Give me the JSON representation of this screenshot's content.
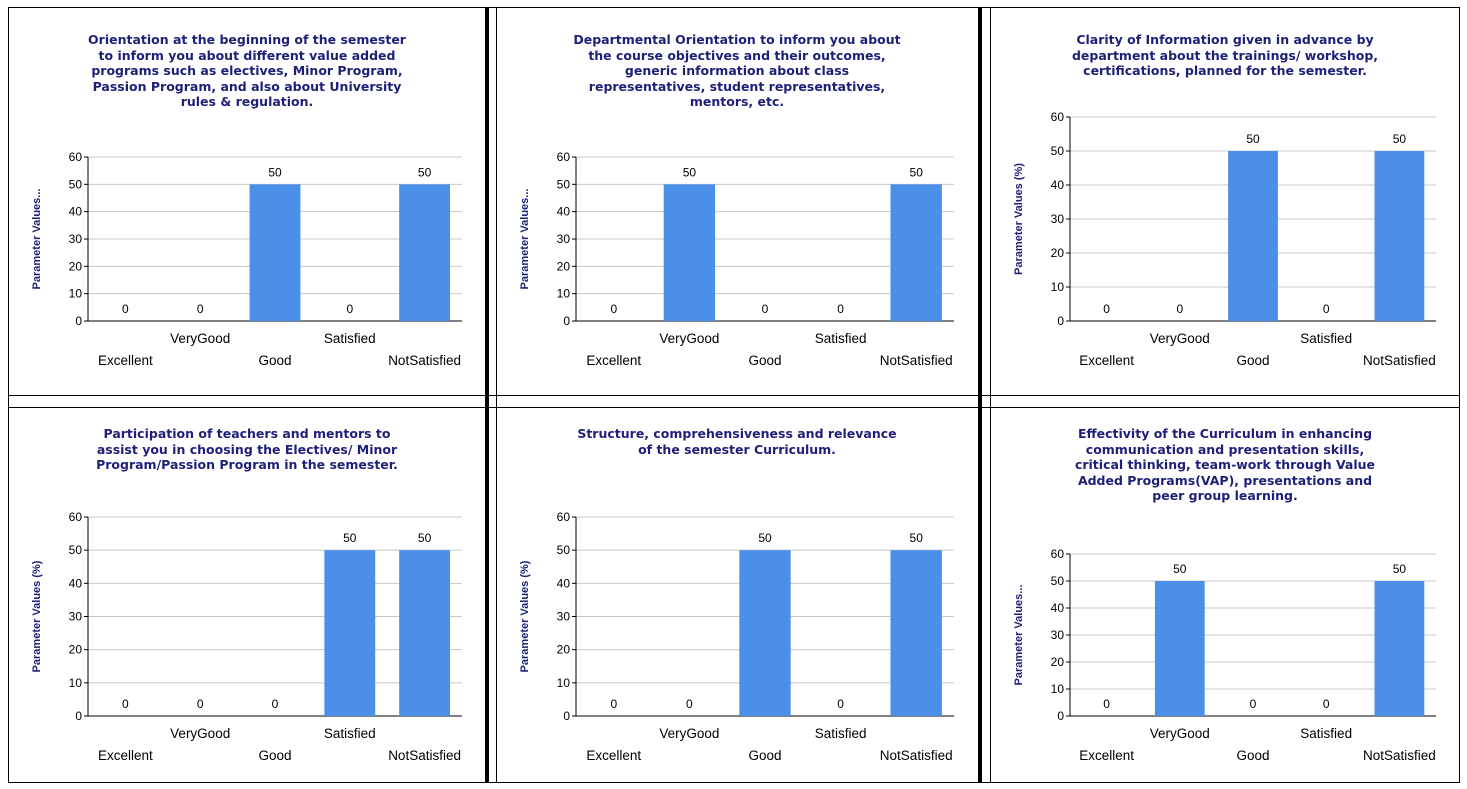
{
  "chart_data": [
    {
      "type": "bar",
      "title_lines": [
        "Orientation at the beginning of the semester",
        "to inform you about different value added",
        "programs such as electives, Minor Program,",
        "Passion Program, and also about University",
        "rules & regulation."
      ],
      "ylabel": "Parameter  Values...",
      "categories": [
        "Excellent",
        "VeryGood",
        "Good",
        "Satisfied",
        "NotSatisfied"
      ],
      "values": [
        0,
        0,
        50,
        0,
        50
      ],
      "data_labels": [
        "0",
        "0",
        "50",
        "0",
        "50"
      ],
      "yticks": [
        "0",
        "10",
        "20",
        "30",
        "40",
        "50",
        "60"
      ],
      "ylim": [
        0,
        60
      ]
    },
    {
      "type": "bar",
      "title_lines": [
        "Departmental Orientation to inform you about",
        "the course objectives and their outcomes,",
        "generic information about class",
        "representatives, student representatives,",
        "mentors, etc."
      ],
      "ylabel": "Parameter  Values...",
      "categories": [
        "Excellent",
        "VeryGood",
        "Good",
        "Satisfied",
        "NotSatisfied"
      ],
      "values": [
        0,
        50,
        0,
        0,
        50
      ],
      "data_labels": [
        "0",
        "50",
        "0",
        "0",
        "50"
      ],
      "yticks": [
        "0",
        "10",
        "20",
        "30",
        "40",
        "50",
        "60"
      ],
      "ylim": [
        0,
        60
      ]
    },
    {
      "type": "bar",
      "title_lines": [
        "Clarity of Information given in advance by",
        "department about the trainings/ workshop,",
        "certifications, planned for the semester."
      ],
      "ylabel": "Parameter Values (%)",
      "categories": [
        "Excellent",
        "VeryGood",
        "Good",
        "Satisfied",
        "NotSatisfied"
      ],
      "values": [
        0,
        0,
        50,
        0,
        50
      ],
      "data_labels": [
        "0",
        "0",
        "50",
        "0",
        "50"
      ],
      "yticks": [
        "0",
        "10",
        "20",
        "30",
        "40",
        "50",
        "60"
      ],
      "ylim": [
        0,
        60
      ]
    },
    {
      "type": "bar",
      "title_lines": [
        "Participation of teachers and mentors to",
        "assist you in choosing the Electives/ Minor",
        "Program/Passion Program in the semester."
      ],
      "ylabel": "Parameter Values (%)",
      "categories": [
        "Excellent",
        "VeryGood",
        "Good",
        "Satisfied",
        "NotSatisfied"
      ],
      "values": [
        0,
        0,
        0,
        50,
        50
      ],
      "data_labels": [
        "0",
        "0",
        "0",
        "50",
        "50"
      ],
      "yticks": [
        "0",
        "10",
        "20",
        "30",
        "40",
        "50",
        "60"
      ],
      "ylim": [
        0,
        60
      ]
    },
    {
      "type": "bar",
      "title_lines": [
        "Structure, comprehensiveness and relevance",
        "of the semester Curriculum."
      ],
      "ylabel": "Parameter Values (%)",
      "categories": [
        "Excellent",
        "VeryGood",
        "Good",
        "Satisfied",
        "NotSatisfied"
      ],
      "values": [
        0,
        0,
        50,
        0,
        50
      ],
      "data_labels": [
        "0",
        "0",
        "50",
        "0",
        "50"
      ],
      "yticks": [
        "0",
        "10",
        "20",
        "30",
        "40",
        "50",
        "60"
      ],
      "ylim": [
        0,
        60
      ]
    },
    {
      "type": "bar",
      "title_lines": [
        "Effectivity of the Curriculum in enhancing",
        "communication and presentation skills,",
        "critical thinking, team-work through Value",
        "Added Programs(VAP), presentations and",
        "peer group learning."
      ],
      "ylabel": "Parameter  Values...",
      "categories": [
        "Excellent",
        "VeryGood",
        "Good",
        "Satisfied",
        "NotSatisfied"
      ],
      "values": [
        0,
        50,
        0,
        0,
        50
      ],
      "data_labels": [
        "0",
        "50",
        "0",
        "0",
        "50"
      ],
      "yticks": [
        "0",
        "10",
        "20",
        "30",
        "40",
        "50",
        "60"
      ],
      "ylim": [
        0,
        60
      ]
    }
  ],
  "colors": {
    "bar": "#4b8fe8",
    "title": "#1f1f7a",
    "grid": "#c8c8c8",
    "axis": "#000000"
  }
}
